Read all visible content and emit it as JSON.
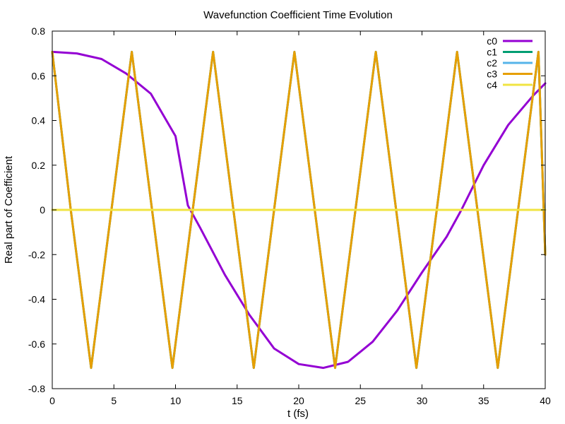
{
  "chart_data": {
    "type": "line",
    "title": "Wavefunction Coefficient Time Evolution",
    "xlabel": "t (fs)",
    "ylabel": "Real part of Coefficient",
    "xlim": [
      0,
      40
    ],
    "ylim": [
      -0.8,
      0.8
    ],
    "xticks": [
      0,
      5,
      10,
      15,
      20,
      25,
      30,
      35,
      40
    ],
    "yticks": [
      -0.8,
      -0.6,
      -0.4,
      -0.2,
      0,
      0.2,
      0.4,
      0.6,
      0.8
    ],
    "xtick_labels": [
      "0",
      "5",
      "10",
      "15",
      "20",
      "25",
      "30",
      "35",
      "40"
    ],
    "ytick_labels": [
      "-0.8",
      "-0.6",
      "-0.4",
      "-0.2",
      "0",
      "0.2",
      "0.4",
      "0.6",
      "0.8"
    ],
    "grid": false,
    "legend_position": "top-right",
    "series": [
      {
        "name": "c0",
        "color": "#9400d3",
        "points": [
          [
            0,
            0.707
          ],
          [
            2,
            0.7
          ],
          [
            4,
            0.675
          ],
          [
            6,
            0.61
          ],
          [
            8,
            0.52
          ],
          [
            10,
            0.33
          ],
          [
            11,
            0.02
          ],
          [
            12,
            -0.08
          ],
          [
            14,
            -0.29
          ],
          [
            16,
            -0.47
          ],
          [
            18,
            -0.62
          ],
          [
            20,
            -0.69
          ],
          [
            22,
            -0.707
          ],
          [
            24,
            -0.68
          ],
          [
            26,
            -0.59
          ],
          [
            28,
            -0.45
          ],
          [
            30,
            -0.28
          ],
          [
            32,
            -0.12
          ],
          [
            33.2,
            0.0
          ],
          [
            35,
            0.2
          ],
          [
            37,
            0.38
          ],
          [
            39,
            0.51
          ],
          [
            40,
            0.566
          ]
        ]
      },
      {
        "name": "c1",
        "color": "#009e73",
        "points": [
          [
            0,
            0.707
          ],
          [
            1.5,
            0.0
          ],
          [
            3.15,
            -0.707
          ],
          [
            4.8,
            0.0
          ],
          [
            6.45,
            0.707
          ],
          [
            8.1,
            0.0
          ],
          [
            9.75,
            -0.707
          ],
          [
            11.4,
            0.0
          ],
          [
            13.05,
            0.707
          ],
          [
            14.7,
            0.0
          ],
          [
            16.35,
            -0.707
          ],
          [
            18.0,
            0.0
          ],
          [
            19.65,
            0.707
          ],
          [
            21.3,
            0.0
          ],
          [
            22.95,
            -0.707
          ],
          [
            24.6,
            0.0
          ],
          [
            26.25,
            0.707
          ],
          [
            27.9,
            0.0
          ],
          [
            29.55,
            -0.707
          ],
          [
            31.2,
            0.0
          ],
          [
            32.85,
            0.707
          ],
          [
            34.5,
            0.0
          ],
          [
            36.15,
            -0.707
          ],
          [
            37.8,
            0.0
          ],
          [
            39.45,
            0.707
          ],
          [
            40,
            -0.2
          ]
        ]
      },
      {
        "name": "c2",
        "color": "#56b4e9",
        "points": [
          [
            0,
            0.707
          ],
          [
            1.5,
            0.0
          ],
          [
            3.15,
            -0.707
          ],
          [
            4.8,
            0.0
          ],
          [
            6.45,
            0.707
          ],
          [
            8.1,
            0.0
          ],
          [
            9.75,
            -0.707
          ],
          [
            11.4,
            0.0
          ],
          [
            13.05,
            0.707
          ],
          [
            14.7,
            0.0
          ],
          [
            16.35,
            -0.707
          ],
          [
            18.0,
            0.0
          ],
          [
            19.65,
            0.707
          ],
          [
            21.3,
            0.0
          ],
          [
            22.95,
            -0.707
          ],
          [
            24.6,
            0.0
          ],
          [
            26.25,
            0.707
          ],
          [
            27.9,
            0.0
          ],
          [
            29.55,
            -0.707
          ],
          [
            31.2,
            0.0
          ],
          [
            32.85,
            0.707
          ],
          [
            34.5,
            0.0
          ],
          [
            36.15,
            -0.707
          ],
          [
            37.8,
            0.0
          ],
          [
            39.45,
            0.707
          ],
          [
            40,
            -0.2
          ]
        ]
      },
      {
        "name": "c3",
        "color": "#e69f00",
        "points": [
          [
            0,
            0.707
          ],
          [
            1.5,
            0.0
          ],
          [
            3.15,
            -0.707
          ],
          [
            4.8,
            0.0
          ],
          [
            6.45,
            0.707
          ],
          [
            8.1,
            0.0
          ],
          [
            9.75,
            -0.707
          ],
          [
            11.4,
            0.0
          ],
          [
            13.05,
            0.707
          ],
          [
            14.7,
            0.0
          ],
          [
            16.35,
            -0.707
          ],
          [
            18.0,
            0.0
          ],
          [
            19.65,
            0.707
          ],
          [
            21.3,
            0.0
          ],
          [
            22.95,
            -0.707
          ],
          [
            24.6,
            0.0
          ],
          [
            26.25,
            0.707
          ],
          [
            27.9,
            0.0
          ],
          [
            29.55,
            -0.707
          ],
          [
            31.2,
            0.0
          ],
          [
            32.85,
            0.707
          ],
          [
            34.5,
            0.0
          ],
          [
            36.15,
            -0.707
          ],
          [
            37.8,
            0.0
          ],
          [
            39.45,
            0.707
          ],
          [
            40,
            -0.2
          ]
        ]
      },
      {
        "name": "c4",
        "color": "#f0e442",
        "points": [
          [
            0,
            0.0
          ],
          [
            40,
            0.0
          ]
        ]
      }
    ]
  }
}
